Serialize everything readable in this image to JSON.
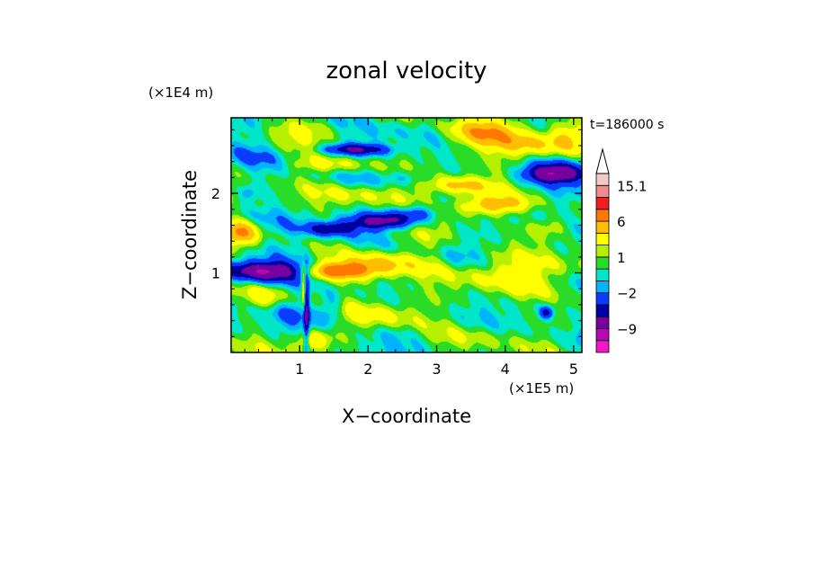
{
  "chart_data": {
    "type": "heatmap",
    "title": "zonal velocity",
    "xlabel": "X−coordinate",
    "ylabel": "Z−coordinate",
    "x_unit": "(×1E5 m)",
    "y_unit": "(×1E4 m)",
    "time_label": "t=186000 s",
    "xlim": [
      0,
      5.12
    ],
    "ylim": [
      0,
      2.95
    ],
    "x_ticks": [
      {
        "value": 1,
        "label": "1"
      },
      {
        "value": 2,
        "label": "2"
      },
      {
        "value": 3,
        "label": "3"
      },
      {
        "value": 4,
        "label": "4"
      },
      {
        "value": 5,
        "label": "5"
      }
    ],
    "y_ticks": [
      {
        "value": 1,
        "label": "1"
      },
      {
        "value": 2,
        "label": "2"
      }
    ],
    "colorbar": {
      "levels": [
        -15,
        -12,
        -9,
        -6,
        -4,
        -2,
        -1,
        0,
        1,
        2,
        4,
        6,
        9,
        12,
        15.1
      ],
      "tick_labels": [
        {
          "value": 15.1,
          "label": "15.1"
        },
        {
          "value": 6,
          "label": "6"
        },
        {
          "value": 1,
          "label": "1"
        },
        {
          "value": -2,
          "label": "−2"
        },
        {
          "value": -9,
          "label": "−9"
        }
      ],
      "colors": [
        "#f018c8",
        "#b40ab4",
        "#7800a0",
        "#0000a0",
        "#0a3cff",
        "#00b4ff",
        "#00e6c8",
        "#28dc28",
        "#b4f000",
        "#ffff00",
        "#ffbe00",
        "#ff7800",
        "#f01e1e",
        "#f08c8c",
        "#f5c8c8"
      ],
      "extend_max_color": "#ffffff"
    },
    "features": [
      {
        "x": 0.5,
        "z": 1.02,
        "sx": 0.65,
        "sz": 0.12,
        "v": -8
      },
      {
        "x": 0.15,
        "z": 1.5,
        "sx": 0.25,
        "sz": 0.15,
        "v": 5
      },
      {
        "x": 1.5,
        "z": 1.02,
        "sx": 0.5,
        "sz": 0.1,
        "v": 7
      },
      {
        "x": 2.1,
        "z": 1.1,
        "sx": 0.6,
        "sz": 0.14,
        "v": 4
      },
      {
        "x": 2.2,
        "z": 1.65,
        "sx": 0.5,
        "sz": 0.1,
        "v": -7
      },
      {
        "x": 1.45,
        "z": 1.55,
        "sx": 0.35,
        "sz": 0.08,
        "v": -5
      },
      {
        "x": 2.7,
        "z": 1.75,
        "sx": 0.35,
        "sz": 0.1,
        "v": -4
      },
      {
        "x": 2.0,
        "z": 2.0,
        "sx": 0.8,
        "sz": 0.15,
        "v": 3
      },
      {
        "x": 1.8,
        "z": 2.55,
        "sx": 0.5,
        "sz": 0.07,
        "v": -6
      },
      {
        "x": 1.5,
        "z": 2.35,
        "sx": 0.7,
        "sz": 0.1,
        "v": 2.5
      },
      {
        "x": 0.4,
        "z": 2.5,
        "sx": 0.5,
        "sz": 0.35,
        "v": -1.5
      },
      {
        "x": 0.8,
        "z": 2.75,
        "sx": 0.6,
        "sz": 0.15,
        "v": 1.5
      },
      {
        "x": 4.7,
        "z": 2.25,
        "sx": 0.45,
        "sz": 0.12,
        "v": -8
      },
      {
        "x": 4.3,
        "z": 2.6,
        "sx": 0.5,
        "sz": 0.15,
        "v": 3
      },
      {
        "x": 3.6,
        "z": 2.75,
        "sx": 0.5,
        "sz": 0.2,
        "v": 5
      },
      {
        "x": 4.9,
        "z": 2.7,
        "sx": 0.3,
        "sz": 0.2,
        "v": 4
      },
      {
        "x": 3.8,
        "z": 1.85,
        "sx": 0.5,
        "sz": 0.12,
        "v": 6
      },
      {
        "x": 3.4,
        "z": 2.1,
        "sx": 0.4,
        "sz": 0.1,
        "v": 4
      },
      {
        "x": 4.7,
        "z": 1.6,
        "sx": 0.35,
        "sz": 0.15,
        "v": 3
      },
      {
        "x": 3.0,
        "z": 1.15,
        "sx": 0.6,
        "sz": 0.45,
        "v": 0.5
      },
      {
        "x": 3.3,
        "z": 1.25,
        "sx": 0.25,
        "sz": 0.18,
        "v": -1
      },
      {
        "x": 4.05,
        "z": 1.0,
        "sx": 0.7,
        "sz": 0.25,
        "v": 4
      },
      {
        "x": 4.45,
        "z": 0.55,
        "sx": 0.4,
        "sz": 0.2,
        "v": -1.5
      },
      {
        "x": 4.6,
        "z": 0.5,
        "sx": 0.1,
        "sz": 0.08,
        "v": -5
      },
      {
        "x": 3.95,
        "z": 0.35,
        "sx": 0.45,
        "sz": 0.2,
        "v": 0.5
      },
      {
        "x": 2.4,
        "z": 0.5,
        "sx": 0.7,
        "sz": 0.2,
        "v": 2.5
      },
      {
        "x": 3.0,
        "z": 0.15,
        "sx": 0.7,
        "sz": 0.12,
        "v": 0.8
      },
      {
        "x": 0.9,
        "z": 0.5,
        "sx": 0.35,
        "sz": 0.2,
        "v": -2
      },
      {
        "x": 1.45,
        "z": 0.55,
        "sx": 0.2,
        "sz": 0.2,
        "v": -3.5
      },
      {
        "x": 0.5,
        "z": 0.7,
        "sx": 0.3,
        "sz": 0.15,
        "v": 3
      },
      {
        "x": 1.2,
        "z": 0.15,
        "sx": 0.25,
        "sz": 0.12,
        "v": 4
      },
      {
        "x": 1.1,
        "z": 0.5,
        "sx": 0.04,
        "sz": 0.5,
        "v": -6
      },
      {
        "x": 1.06,
        "z": 0.8,
        "sx": 0.03,
        "sz": 0.25,
        "v": 5
      },
      {
        "x": 0.25,
        "z": 2.0,
        "sx": 0.15,
        "sz": 0.1,
        "v": -2
      },
      {
        "x": 2.6,
        "z": 2.2,
        "sx": 0.3,
        "sz": 0.1,
        "v": -2
      }
    ]
  }
}
